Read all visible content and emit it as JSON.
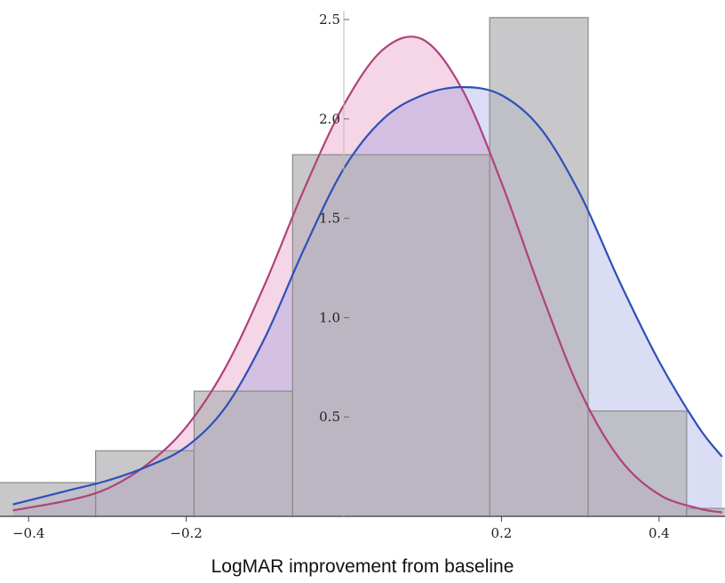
{
  "chart_data": {
    "type": "bar",
    "title": "",
    "xlabel": "LogMAR improvement from baseline",
    "ylabel": "",
    "xlim": [
      -0.42,
      0.48
    ],
    "ylim": [
      0,
      2.6
    ],
    "grid": false,
    "colors": {
      "histogram_fill": "#b3b3b6",
      "histogram_edge": "#8a8a8a",
      "magenta_curve": "#b0427a",
      "magenta_fill": "#d86aa8",
      "blue_curve": "#2f4fb8",
      "blue_fill": "#7b86d6"
    },
    "x_ticks": [
      {
        "value": -0.4,
        "label": "−0.4"
      },
      {
        "value": -0.2,
        "label": "−0.2"
      },
      {
        "value": 0.2,
        "label": "0.2"
      },
      {
        "value": 0.4,
        "label": "0.4"
      }
    ],
    "y_ticks": [
      {
        "value": 0.5,
        "label": "0.5"
      },
      {
        "value": 1.0,
        "label": "1.0"
      },
      {
        "value": 1.5,
        "label": "1.5"
      },
      {
        "value": 2.0,
        "label": "2.0"
      },
      {
        "value": 2.5,
        "label": "2.5"
      }
    ],
    "histogram": {
      "bin_edges": [
        -0.445,
        -0.315,
        -0.19,
        -0.065,
        0.185,
        0.31,
        0.435,
        0.56
      ],
      "values": [
        0.17,
        0.33,
        0.63,
        1.82,
        2.51,
        0.53,
        0.04
      ]
    },
    "series": [
      {
        "type": "line",
        "x": [
          -0.42,
          -0.35,
          -0.3,
          -0.25,
          -0.2,
          -0.15,
          -0.1,
          -0.05,
          0.0,
          0.05,
          0.1,
          0.15,
          0.2,
          0.25,
          0.3,
          0.35,
          0.4,
          0.45,
          0.48
        ],
        "values": [
          0.03,
          0.08,
          0.14,
          0.26,
          0.45,
          0.75,
          1.17,
          1.65,
          2.07,
          2.35,
          2.4,
          2.15,
          1.68,
          1.13,
          0.63,
          0.29,
          0.11,
          0.04,
          0.02
        ]
      },
      {
        "type": "line",
        "x": [
          -0.42,
          -0.35,
          -0.3,
          -0.25,
          -0.2,
          -0.15,
          -0.1,
          -0.05,
          0.0,
          0.05,
          0.1,
          0.15,
          0.2,
          0.25,
          0.3,
          0.35,
          0.4,
          0.45,
          0.48
        ],
        "values": [
          0.06,
          0.13,
          0.18,
          0.25,
          0.35,
          0.55,
          0.9,
          1.35,
          1.75,
          2.0,
          2.12,
          2.16,
          2.12,
          1.95,
          1.62,
          1.18,
          0.78,
          0.45,
          0.3
        ]
      }
    ]
  }
}
